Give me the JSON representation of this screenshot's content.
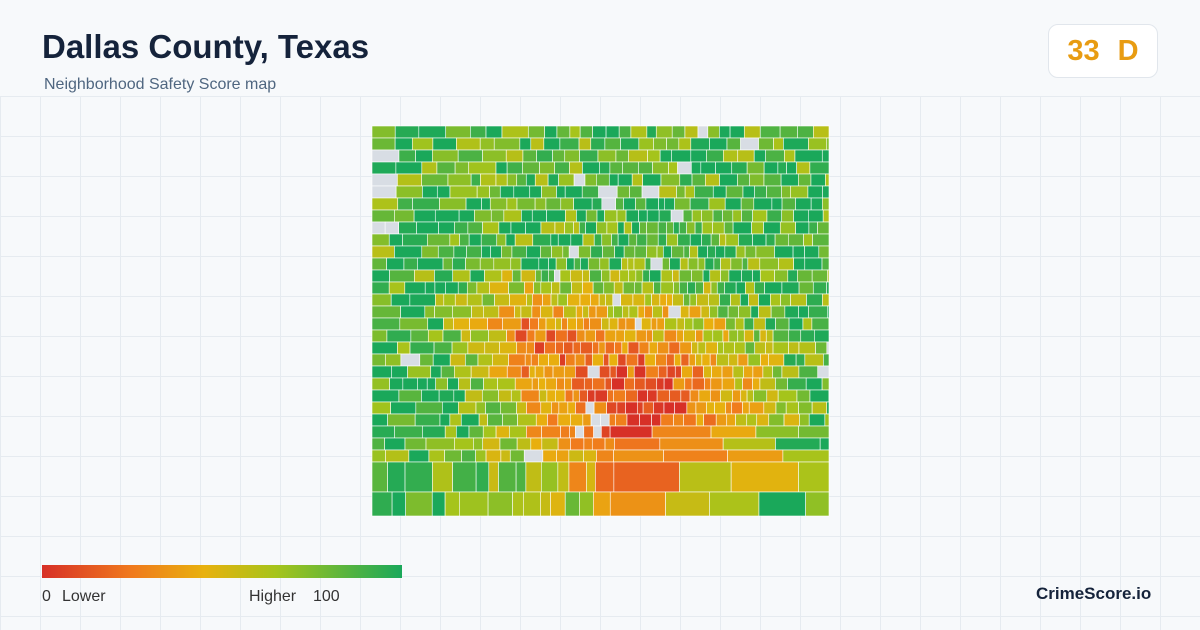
{
  "header": {
    "title": "Dallas County, Texas",
    "subtitle": "Neighborhood Safety Score map"
  },
  "score": {
    "value": 33,
    "grade": "D"
  },
  "legend": {
    "min": 0,
    "min_label": "Lower",
    "max_label": "Higher",
    "max": 100
  },
  "brand": "CrimeScore.io"
}
